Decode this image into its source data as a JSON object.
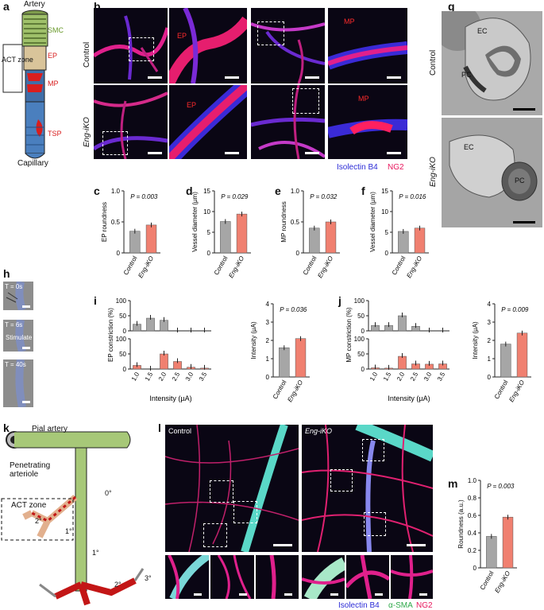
{
  "panels": {
    "a": "a",
    "b": "b",
    "c": "c",
    "d": "d",
    "e": "e",
    "f": "f",
    "g": "g",
    "h": "h",
    "i": "i",
    "j": "j",
    "k": "k",
    "l": "l",
    "m": "m"
  },
  "a": {
    "artery": "Artery",
    "smc": "SMC",
    "act_zone": "ACT zone",
    "ep": "EP",
    "mp": "MP",
    "tsp": "TSP",
    "capillary": "Capillary"
  },
  "b": {
    "row_control": "Control",
    "row_eng": "Eng-iKO",
    "ep": "EP",
    "mp": "MP",
    "legend_isolectin": "Isolectin B4",
    "legend_ng2": "NG2"
  },
  "g": {
    "row_control": "Control",
    "row_eng": "Eng-iKO",
    "ec": "EC",
    "pc": "PC"
  },
  "h": {
    "t0": "T = 0s",
    "t6": "T = 6s",
    "t40": "T = 40s",
    "stimulate": "Stimulate"
  },
  "k": {
    "pial": "Pial artery",
    "penetrating": "Penetrating arteriole",
    "act_zone": "ACT zone",
    "o0": "0°",
    "o1a": "1°",
    "o1b": "1°",
    "o2a": "2°",
    "o2b": "2°",
    "o3": "3°"
  },
  "l": {
    "control": "Control",
    "eng": "Eng-iKO",
    "legend_isolectin": "Isolectin B4",
    "legend_sma": "α-SMA",
    "legend_ng2": "NG2"
  },
  "colors": {
    "control": "#a6a6a6",
    "eng": "#f08070",
    "legend_blue": "#2b2bd6",
    "legend_red": "#e8175d",
    "legend_green": "#2ea84a"
  },
  "chart_data": [
    {
      "panel": "c",
      "type": "bar",
      "categories": [
        "Control",
        "Eng-iKO"
      ],
      "values": [
        0.35,
        0.45
      ],
      "ylabel": "EP roundness",
      "ylim": [
        0,
        1.0
      ],
      "yticks": [
        "0",
        "0.5",
        "1.0"
      ],
      "annotation": "P = 0.003"
    },
    {
      "panel": "d",
      "type": "bar",
      "categories": [
        "Control",
        "Eng-iKO"
      ],
      "values": [
        7.6,
        9.4
      ],
      "ylabel": "Vessel diameter (µm)",
      "ylim": [
        0,
        15
      ],
      "yticks": [
        "0",
        "5",
        "10",
        "15"
      ],
      "annotation": "P = 0.029"
    },
    {
      "panel": "e",
      "type": "bar",
      "categories": [
        "Control",
        "Eng-iKO"
      ],
      "values": [
        0.4,
        0.5
      ],
      "ylabel": "MP roundness",
      "ylim": [
        0,
        1.0
      ],
      "yticks": [
        "0",
        "0.5",
        "1.0"
      ],
      "annotation": "P = 0.032"
    },
    {
      "panel": "f",
      "type": "bar",
      "categories": [
        "Control",
        "Eng-iKO"
      ],
      "values": [
        5.2,
        6.0
      ],
      "ylabel": "Vessel diameter (µm)",
      "ylim": [
        0,
        15
      ],
      "yticks": [
        "0",
        "5",
        "10",
        "15"
      ],
      "annotation": "P = 0.016"
    },
    {
      "panel": "i",
      "type": "bar",
      "xlabel": "Intensity (µA)",
      "ylabel": "EP constriction (%)",
      "categories": [
        "1.0",
        "1.5",
        "2.0",
        "2.5",
        "3.0",
        "3.5"
      ],
      "ylim": [
        0,
        100
      ],
      "yticks": [
        "0",
        "50",
        "100"
      ],
      "series": [
        {
          "values": [
            22,
            42,
            35,
            0,
            0,
            0
          ]
        },
        {
          "values": [
            12,
            0,
            50,
            25,
            6,
            3
          ]
        }
      ]
    },
    {
      "panel": "i-right",
      "type": "bar",
      "categories": [
        "Control",
        "Eng-iKO"
      ],
      "values": [
        1.6,
        2.1
      ],
      "ylabel": "Intensity (µA)",
      "ylim": [
        0,
        4
      ],
      "yticks": [
        "0",
        "1",
        "2",
        "3",
        "4"
      ],
      "annotation": "P = 0.036"
    },
    {
      "panel": "j",
      "type": "bar",
      "xlabel": "Intensity (µA)",
      "ylabel": "MP constriction (%)",
      "categories": [
        "1.0",
        "1.5",
        "2.0",
        "2.5",
        "3.0",
        "3.5"
      ],
      "ylim": [
        0,
        100
      ],
      "yticks": [
        "0",
        "50",
        "100"
      ],
      "series": [
        {
          "values": [
            18,
            18,
            50,
            15,
            0,
            0
          ]
        },
        {
          "values": [
            4,
            3,
            42,
            17,
            16,
            17
          ]
        }
      ]
    },
    {
      "panel": "j-right",
      "type": "bar",
      "categories": [
        "Control",
        "Eng-iKO"
      ],
      "values": [
        1.8,
        2.4
      ],
      "ylabel": "Intensity (µA)",
      "ylim": [
        0,
        4
      ],
      "yticks": [
        "0",
        "1",
        "2",
        "3",
        "4"
      ],
      "annotation": "P = 0.009"
    },
    {
      "panel": "m",
      "type": "bar",
      "categories": [
        "Control",
        "Eng-iKO"
      ],
      "values": [
        0.36,
        0.58
      ],
      "ylabel": "Roundness (a.u.)",
      "ylim": [
        0,
        1.0
      ],
      "yticks": [
        "0",
        "0.2",
        "0.4",
        "0.6",
        "0.8",
        "1.0"
      ],
      "annotation": "P = 0.003"
    }
  ]
}
